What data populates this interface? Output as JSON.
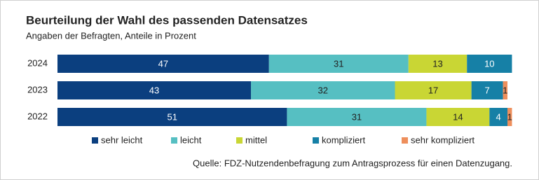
{
  "chart_data": {
    "type": "stacked-bar-horizontal",
    "title": "Beurteilung der Wahl des passenden Datensatzes",
    "subtitle": "Angaben der Befragten, Anteile in Prozent",
    "categories": [
      "2024",
      "2023",
      "2022"
    ],
    "series": [
      {
        "name": "sehr leicht",
        "color": "#0b3f7f",
        "values": [
          47,
          43,
          51
        ]
      },
      {
        "name": "leicht",
        "color": "#56bfc2",
        "values": [
          31,
          32,
          31
        ]
      },
      {
        "name": "mittel",
        "color": "#c9d634",
        "values": [
          13,
          17,
          14
        ]
      },
      {
        "name": "kompliziert",
        "color": "#1680a6",
        "values": [
          10,
          7,
          4
        ]
      },
      {
        "name": "sehr kompliziert",
        "color": "#ee8f5c",
        "values": [
          null,
          1,
          1
        ]
      }
    ],
    "source": "Quelle: FDZ-Nutzendenbefragung zum Antragsprozess für einen Datenzugang."
  }
}
